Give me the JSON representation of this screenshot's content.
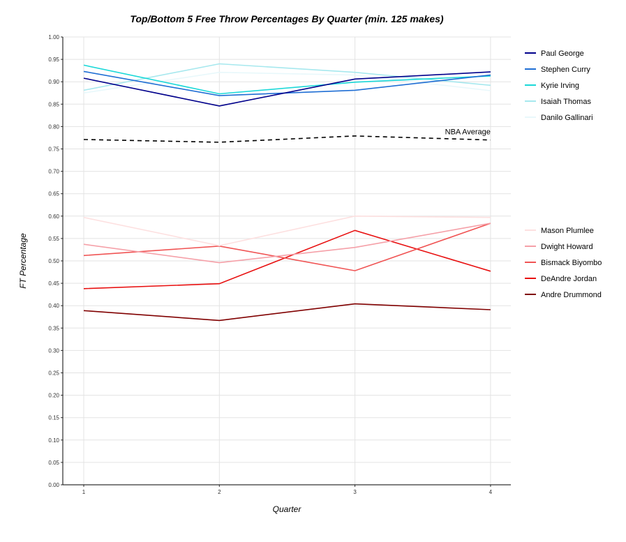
{
  "chart_data": {
    "type": "line",
    "title": "Top/Bottom 5 Free Throw Percentages By Quarter (min. 125 makes)",
    "xlabel": "Quarter",
    "ylabel": "FT Percentage",
    "x": [
      1,
      2,
      3,
      4
    ],
    "x_tick_labels": [
      "1",
      "2",
      "3",
      "4"
    ],
    "ylim": [
      0,
      1
    ],
    "y_tick_labels": [
      "0.00",
      "0.05",
      "0.10",
      "0.15",
      "0.20",
      "0.25",
      "0.30",
      "0.35",
      "0.40",
      "0.45",
      "0.50",
      "0.55",
      "0.60",
      "0.65",
      "0.70",
      "0.75",
      "0.80",
      "0.85",
      "0.90",
      "0.95",
      "1.00"
    ],
    "grid": true,
    "legend_position": "right",
    "top_series": [
      {
        "name": "Paul George",
        "color": "#00008b",
        "values": [
          0.908,
          0.846,
          0.906,
          0.922
        ]
      },
      {
        "name": "Stephen Curry",
        "color": "#1f6ed4",
        "values": [
          0.923,
          0.869,
          0.881,
          0.915
        ]
      },
      {
        "name": "Kyrie Irving",
        "color": "#1ad8d8",
        "values": [
          0.937,
          0.873,
          0.899,
          0.913
        ]
      },
      {
        "name": "Isaiah Thomas",
        "color": "#a6e8ee",
        "values": [
          0.881,
          0.94,
          0.921,
          0.892
        ]
      },
      {
        "name": "Danilo Gallinari",
        "color": "#e8f8fb",
        "values": [
          0.875,
          0.921,
          0.915,
          0.88
        ]
      }
    ],
    "bottom_series": [
      {
        "name": "Mason Plumlee",
        "color": "#fde0e0",
        "values": [
          0.597,
          0.534,
          0.6,
          0.597
        ]
      },
      {
        "name": "Dwight Howard",
        "color": "#f5a0a8",
        "values": [
          0.537,
          0.496,
          0.53,
          0.584
        ]
      },
      {
        "name": "Bismack Biyombo",
        "color": "#f05454",
        "values": [
          0.512,
          0.533,
          0.478,
          0.584
        ]
      },
      {
        "name": "DeAndre Jordan",
        "color": "#e81010",
        "values": [
          0.438,
          0.449,
          0.568,
          0.477
        ]
      },
      {
        "name": "Andre Drummond",
        "color": "#800000",
        "values": [
          0.389,
          0.367,
          0.404,
          0.391
        ]
      }
    ],
    "reference_line": {
      "label": "NBA Average",
      "color": "#000000",
      "style": "dashed",
      "values": [
        0.771,
        0.765,
        0.779,
        0.77
      ]
    }
  }
}
